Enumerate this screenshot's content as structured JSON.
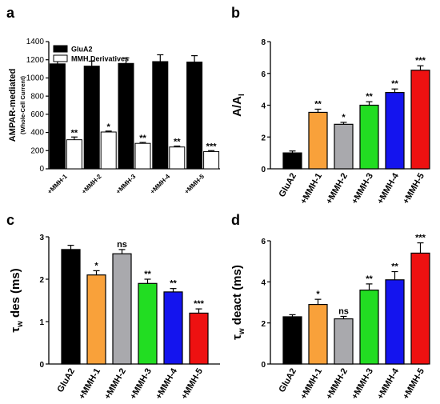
{
  "chart_data": [
    {
      "panel": "a",
      "type": "bar",
      "ylabel": "AMPAR-mediated",
      "ylabel2": "(Whole-Cell Current)",
      "ylim": [
        0,
        1400
      ],
      "yticks": [
        0,
        200,
        400,
        600,
        800,
        1000,
        1200,
        1400
      ],
      "categories": [
        "+MMH-1",
        "+MMH-2",
        "+MMH-3",
        "+MMH-4",
        "+MMH-5"
      ],
      "legend_position": "top-left",
      "series": [
        {
          "name": "GluA2",
          "color": "#000000",
          "values": [
            1155,
            1130,
            1160,
            1180,
            1175
          ],
          "errors": [
            55,
            55,
            60,
            75,
            70
          ],
          "significance": [
            "",
            "",
            "",
            "",
            ""
          ]
        },
        {
          "name": "MMH Derivatives",
          "color": "#ffffff",
          "values": [
            320,
            405,
            280,
            240,
            190
          ],
          "errors": [
            30,
            10,
            10,
            10,
            10
          ],
          "significance": [
            "**",
            "*",
            "**",
            "**",
            "***"
          ]
        }
      ]
    },
    {
      "panel": "b",
      "type": "bar",
      "ylabel": "A/A",
      "ylabel_sub": "I",
      "ylim": [
        0,
        8
      ],
      "yticks": [
        0,
        2,
        4,
        6,
        8
      ],
      "categories": [
        "GluA2",
        "+MMH-1",
        "+MMH-2",
        "+MMH-3",
        "+MMH-4",
        "+MMH-5"
      ],
      "values": [
        1.0,
        3.55,
        2.8,
        4.0,
        4.8,
        6.2
      ],
      "errors": [
        0.12,
        0.2,
        0.12,
        0.22,
        0.22,
        0.28
      ],
      "significance": [
        "",
        "**",
        "*",
        "**",
        "**",
        "***"
      ],
      "colors": [
        "#000000",
        "#f9a13a",
        "#a9a9ad",
        "#22dd22",
        "#1414ee",
        "#ee1111"
      ]
    },
    {
      "panel": "c",
      "type": "bar",
      "ylabel": "des (ms)",
      "ylabel_prefix": "τ",
      "ylabel_sub": "w",
      "ylim": [
        0,
        3
      ],
      "yticks": [
        0,
        1,
        2,
        3
      ],
      "categories": [
        "GluA2",
        "+MMH-1",
        "+MMH-2",
        "+MMH-3",
        "+MMH-4",
        "+MMH-5"
      ],
      "values": [
        2.7,
        2.1,
        2.6,
        1.9,
        1.7,
        1.2
      ],
      "errors": [
        0.1,
        0.1,
        0.1,
        0.1,
        0.08,
        0.1
      ],
      "significance": [
        "",
        "*",
        "ns",
        "**",
        "**",
        "***"
      ],
      "colors": [
        "#000000",
        "#f9a13a",
        "#a9a9ad",
        "#22dd22",
        "#1414ee",
        "#ee1111"
      ]
    },
    {
      "panel": "d",
      "type": "bar",
      "ylabel": "deact (ms)",
      "ylabel_prefix": "τ",
      "ylabel_sub": "w",
      "ylim": [
        0,
        6
      ],
      "yticks": [
        0,
        2,
        4,
        6
      ],
      "categories": [
        "GluA2",
        "+MMH-1",
        "+MMH-2",
        "+MMH-3",
        "+MMH-4",
        "+MMH-5"
      ],
      "values": [
        2.3,
        2.9,
        2.2,
        3.6,
        4.1,
        5.4
      ],
      "errors": [
        0.1,
        0.25,
        0.12,
        0.3,
        0.4,
        0.5
      ],
      "significance": [
        "",
        "*",
        "ns",
        "**",
        "**",
        "***"
      ],
      "colors": [
        "#000000",
        "#f9a13a",
        "#a9a9ad",
        "#22dd22",
        "#1414ee",
        "#ee1111"
      ]
    }
  ]
}
